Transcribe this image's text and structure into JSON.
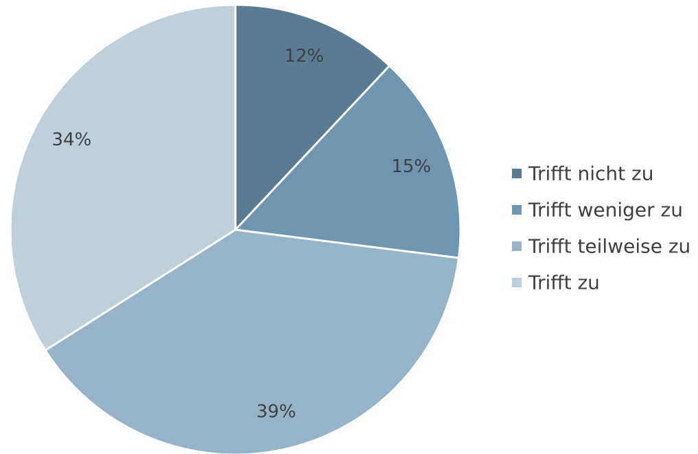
{
  "chart_data": {
    "type": "pie",
    "categories": [
      "Trifft nicht zu",
      "Trifft weniger zu",
      "Trifft teilweise zu",
      "Trifft zu"
    ],
    "values": [
      12,
      15,
      39,
      34
    ],
    "labels": [
      "12%",
      "15%",
      "39%",
      "34%"
    ],
    "colors": [
      "#5a7b91",
      "#6e96b0",
      "#96b3c7",
      "#bfd0db"
    ],
    "legend_position": "right",
    "start_angle": "12 o'clock",
    "direction": "clockwise"
  }
}
